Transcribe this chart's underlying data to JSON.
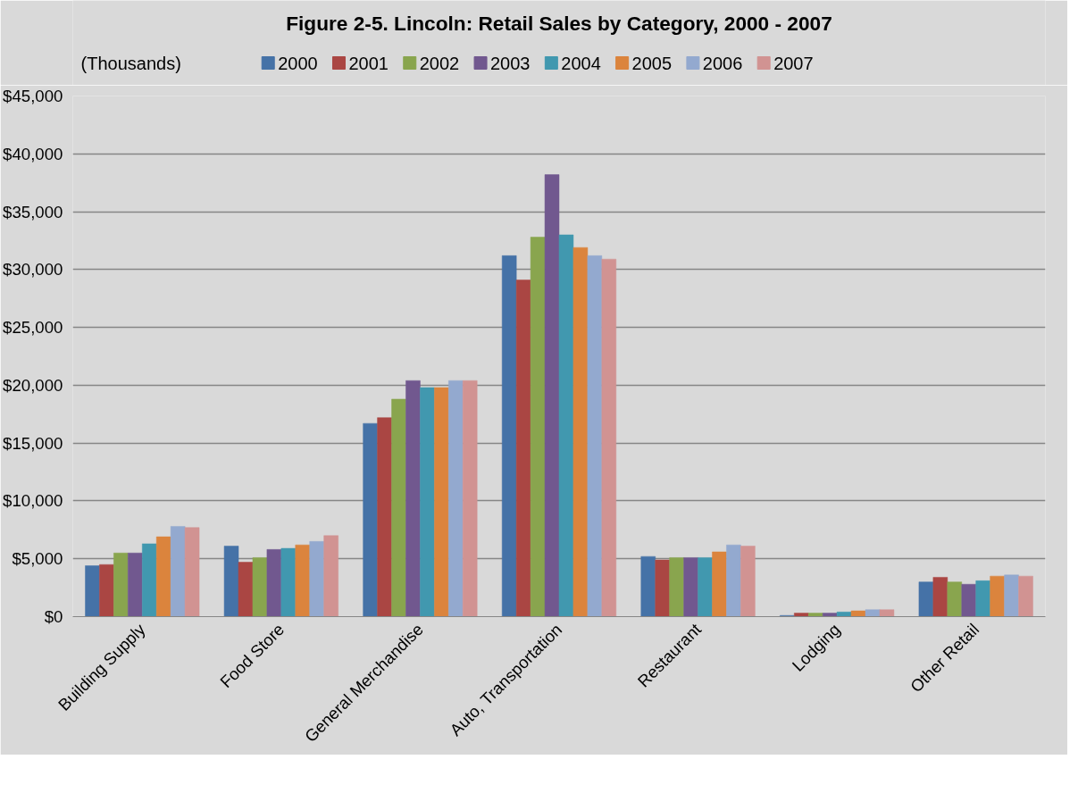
{
  "chart_data": {
    "type": "bar",
    "title": "Figure 2-5. Lincoln: Retail Sales by Category, 2000 - 2007",
    "ylabel": "(Thousands)",
    "categories": [
      "Building Supply",
      "Food Store",
      "General Merchandise",
      "Auto, Transportation",
      "Restaurant",
      "Lodging",
      "Other Retail"
    ],
    "series": [
      {
        "name": "2000",
        "color": "#4572a7",
        "values": [
          4400,
          6100,
          16700,
          31200,
          5200,
          100,
          3000
        ]
      },
      {
        "name": "2001",
        "color": "#aa4643",
        "values": [
          4500,
          4700,
          17200,
          29100,
          4900,
          300,
          3400
        ]
      },
      {
        "name": "2002",
        "color": "#89a54e",
        "values": [
          5500,
          5100,
          18800,
          32800,
          5100,
          300,
          3000
        ]
      },
      {
        "name": "2003",
        "color": "#71588f",
        "values": [
          5500,
          5800,
          20400,
          38200,
          5100,
          300,
          2800
        ]
      },
      {
        "name": "2004",
        "color": "#4198af",
        "values": [
          6300,
          5900,
          19800,
          33000,
          5100,
          400,
          3100
        ]
      },
      {
        "name": "2005",
        "color": "#db843d",
        "values": [
          6900,
          6200,
          19800,
          31900,
          5600,
          500,
          3500
        ]
      },
      {
        "name": "2006",
        "color": "#93a9cf",
        "values": [
          7800,
          6500,
          20400,
          31200,
          6200,
          600,
          3600
        ]
      },
      {
        "name": "2007",
        "color": "#d19392",
        "values": [
          7700,
          7000,
          20400,
          30900,
          6100,
          600,
          3500
        ]
      }
    ],
    "ylim": [
      0,
      45000
    ],
    "yticks": [
      {
        "value": 0,
        "label": "$0"
      },
      {
        "value": 5000,
        "label": "$5,000"
      },
      {
        "value": 10000,
        "label": "$10,000"
      },
      {
        "value": 15000,
        "label": "$15,000"
      },
      {
        "value": 20000,
        "label": "$20,000"
      },
      {
        "value": 25000,
        "label": "$25,000"
      },
      {
        "value": 30000,
        "label": "$30,000"
      },
      {
        "value": 35000,
        "label": "$35,000"
      },
      {
        "value": 40000,
        "label": "$40,000"
      },
      {
        "value": 45000,
        "label": "$45,000"
      }
    ],
    "grid": "y",
    "legend": "top"
  }
}
